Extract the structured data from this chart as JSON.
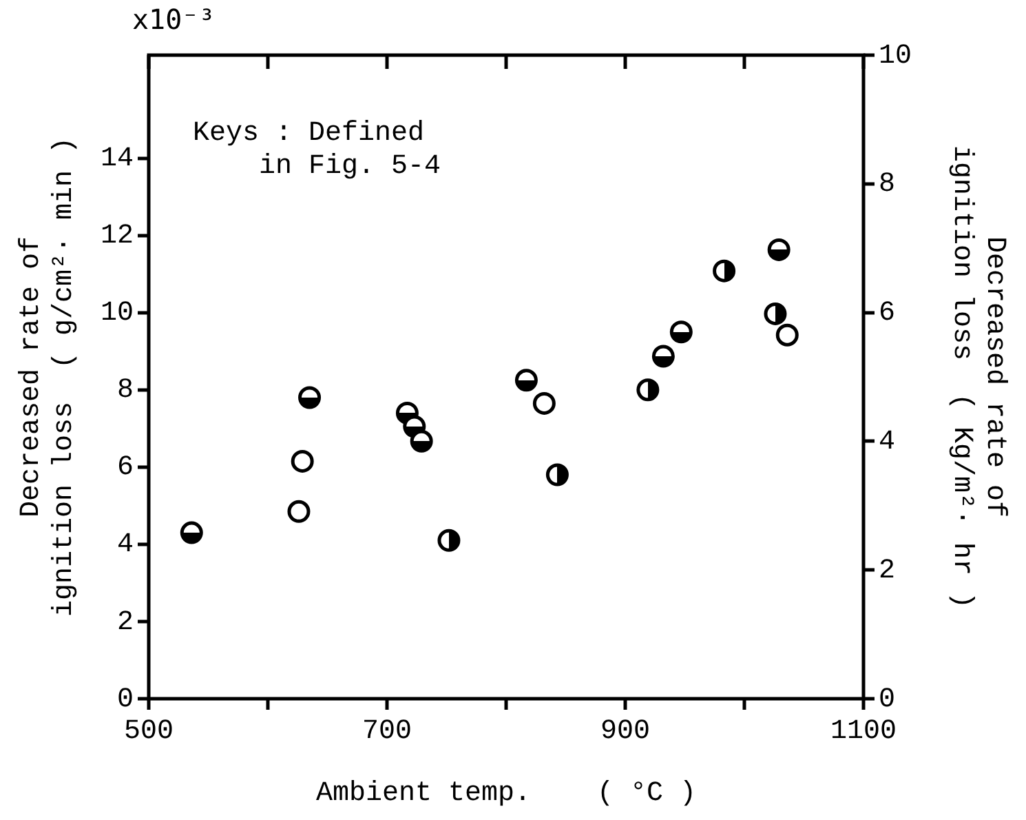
{
  "chart_data": {
    "type": "scatter",
    "xlabel": "Ambient temp.    ( °C )",
    "ylabel": "Decreased rate of\nignition loss  ( g/cm²· min )",
    "y2label": "Decreased rate of\nignition loss  ( Kg/m²· hr )",
    "annotations": [
      "x10⁻³",
      "Keys : Defined\n    in Fig. 5-4"
    ],
    "xlim": [
      500,
      1100
    ],
    "xticks": [
      500,
      {
        "value": 600,
        "label": null
      },
      700,
      {
        "value": 800,
        "label": null
      },
      900,
      {
        "value": 1000,
        "label": null
      },
      1100
    ],
    "ylim": [
      0,
      16.67
    ],
    "yticks": [
      0,
      2,
      4,
      6,
      8,
      10,
      12,
      14
    ],
    "y2lim": [
      0,
      10
    ],
    "y2ticks": [
      0,
      2,
      4,
      6,
      8,
      10
    ],
    "marker": "circle",
    "grid": false,
    "legend": false,
    "series": [
      {
        "color": "#000000",
        "x": [
          626,
          629,
          832,
          1036
        ],
        "values": [
          4.85,
          6.15,
          7.65,
          9.42
        ]
      },
      {
        "color": "#000000",
        "x": [
          536,
          635,
          717,
          723,
          729,
          817,
          932,
          947,
          1029
        ],
        "values": [
          4.3,
          7.8,
          7.4,
          7.05,
          6.67,
          8.25,
          8.87,
          9.5,
          11.63
        ]
      },
      {
        "color": "#000000",
        "x": [
          752,
          843,
          919,
          983,
          1026
        ],
        "values": [
          4.1,
          5.8,
          8.0,
          11.08,
          9.97
        ]
      }
    ]
  }
}
